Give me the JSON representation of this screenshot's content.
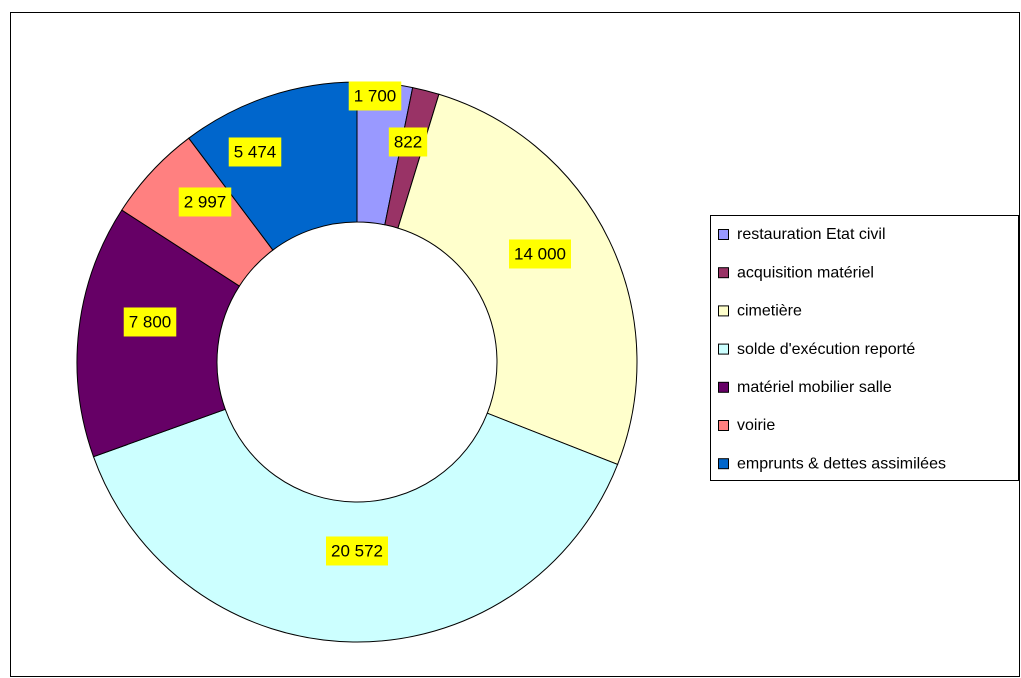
{
  "chart_data": {
    "type": "donut",
    "categories": [
      "restauration Etat civil",
      "acquisition matériel",
      "cimetière",
      "solde d'exécution reporté",
      "matériel mobilier salle",
      "voirie",
      "emprunts & dettes assimilées"
    ],
    "values": [
      1700,
      822,
      14000,
      20572,
      7800,
      2997,
      5474
    ],
    "value_labels": [
      "1 700",
      "822",
      "14 000",
      "20 572",
      "7 800",
      "2 997",
      "5 474"
    ],
    "colors": [
      "#9999ff",
      "#993366",
      "#ffffcc",
      "#ccffff",
      "#660066",
      "#ff8080",
      "#0066cc"
    ],
    "legend": "right"
  }
}
